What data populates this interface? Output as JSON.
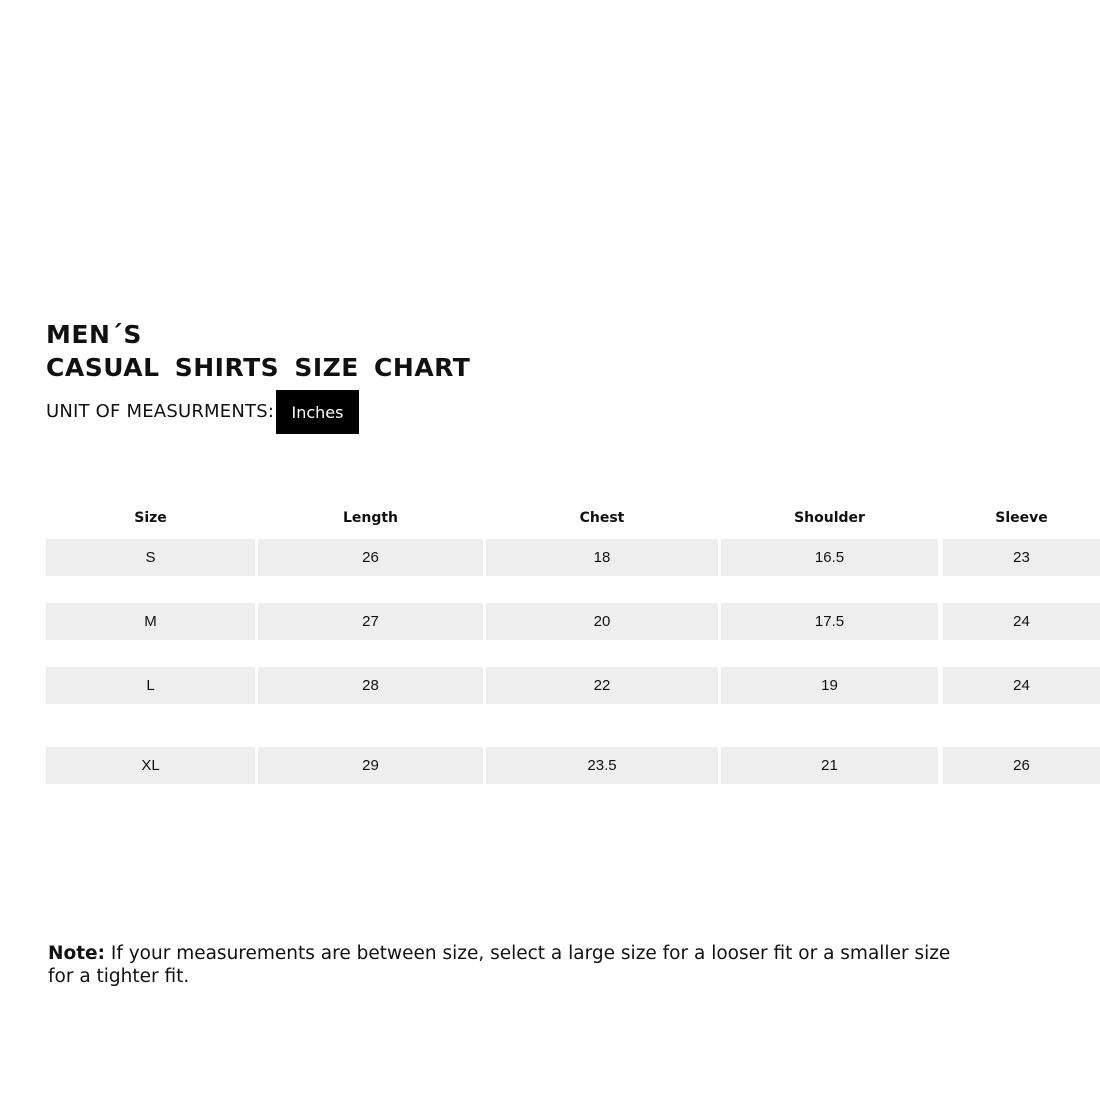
{
  "title": {
    "line1": "MEN´S",
    "line2": "CASUAL SHIRTS SIZE CHART"
  },
  "unit": {
    "label": "UNIT OF MEASURMENTS:",
    "value": "Inches"
  },
  "table": {
    "headers": [
      "Size",
      "Length",
      "Chest",
      "Shoulder",
      "Sleeve"
    ],
    "rows": [
      [
        "S",
        "26",
        "18",
        "16.5",
        "23"
      ],
      [
        "M",
        "27",
        "20",
        "17.5",
        "24"
      ],
      [
        "L",
        "28",
        "22",
        "19",
        "24"
      ],
      [
        "XL",
        "29",
        "23.5",
        "21",
        "26"
      ]
    ]
  },
  "note": {
    "label": "Note:",
    "text": " If your measurements are between size, select a large size for a looser fit or a smaller size for a tighter fit."
  },
  "colors": {
    "badge": "#000000",
    "cell": "#eeeeee"
  }
}
